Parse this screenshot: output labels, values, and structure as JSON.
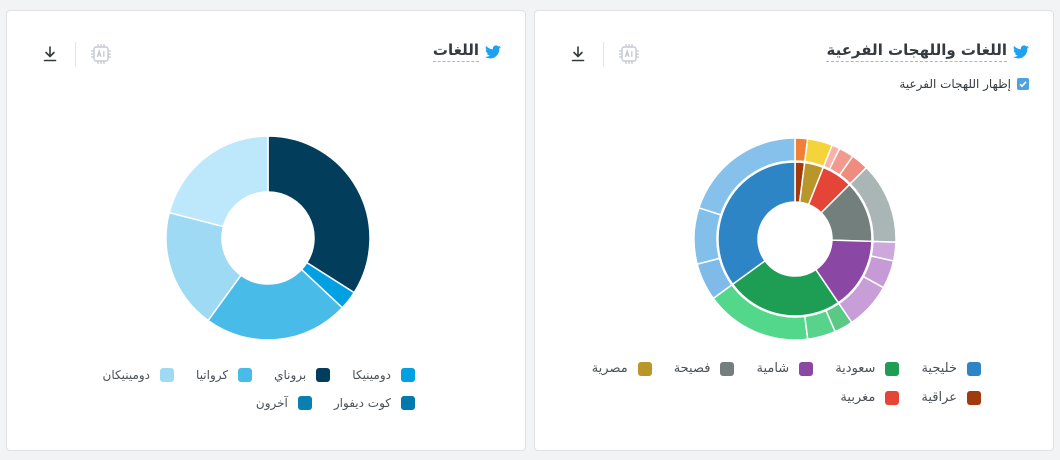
{
  "cards": {
    "dialects": {
      "title": "اللغات واللهجات الفرعية",
      "toggle_label": "إظهار اللهجات الفرعية",
      "toggle_checked": true
    },
    "languages": {
      "title": "اللغات"
    }
  },
  "icons": {
    "title": "twitter-bird-icon",
    "ai": "ai-chip-icon",
    "download": "download-icon",
    "check": "check-icon"
  },
  "chart_data": [
    {
      "type": "donut",
      "rings": {
        "inner": [
          {
            "name": "عراقية",
            "value": 2.0,
            "color": "#a33a0b"
          },
          {
            "name": "مصرية",
            "value": 4.0,
            "color": "#b8962a"
          },
          {
            "name": "مغربية",
            "value": 6.5,
            "color": "#e54537"
          },
          {
            "name": "فصيحة",
            "value": 13.0,
            "color": "#737f7d"
          },
          {
            "name": "شامية",
            "value": 15.0,
            "color": "#8a47a4"
          },
          {
            "name": "سعودية",
            "value": 24.5,
            "color": "#1e9d55"
          },
          {
            "name": "خليجية",
            "value": 35.0,
            "color": "#2d85c6"
          }
        ],
        "outer": [
          {
            "value": 2.0,
            "color": "#f08037"
          },
          {
            "value": 4.0,
            "color": "#f5d33a"
          },
          {
            "value": 1.3,
            "color": "#f7b2a9"
          },
          {
            "value": 2.4,
            "color": "#f39a8e"
          },
          {
            "value": 2.8,
            "color": "#ef8b7f"
          },
          {
            "value": 13.0,
            "color": "#aab6b5"
          },
          {
            "value": 3.0,
            "color": "#cda8dc"
          },
          {
            "value": 4.5,
            "color": "#c69ad6"
          },
          {
            "value": 7.5,
            "color": "#c79ed7"
          },
          {
            "value": 3.0,
            "color": "#5ac985"
          },
          {
            "value": 4.5,
            "color": "#57d38c"
          },
          {
            "value": 17.0,
            "color": "#53d88b"
          },
          {
            "value": 6.0,
            "color": "#7fbbe9"
          },
          {
            "value": 9.0,
            "color": "#82bfeb"
          },
          {
            "value": 20.0,
            "color": "#86c1ec"
          }
        ]
      },
      "legend": [
        [
          "خليجية",
          "سعودية",
          "شامية",
          "فصيحة",
          "مصرية"
        ],
        [
          "عراقية",
          "مغربية"
        ]
      ]
    },
    {
      "type": "donut",
      "series": [
        {
          "name": "بروناي",
          "value": 34.0,
          "color": "#023d5c"
        },
        {
          "name": "دومينيكا",
          "value": 3.0,
          "color": "#00a0e3"
        },
        {
          "name": "كرواتيا",
          "value": 23.0,
          "color": "#49bbe9"
        },
        {
          "name": "دومينيكان",
          "value": 19.0,
          "color": "#9fdaf5"
        },
        {
          "name": "كوت ديفوار",
          "value": 21.0,
          "color": "#bde8fb"
        }
      ],
      "legend": [
        [
          {
            "name": "دومينيكا",
            "color": "#00a0e3"
          },
          {
            "name": "بروناي",
            "color": "#023d5c"
          },
          {
            "name": "كرواتيا",
            "color": "#49bbe9"
          },
          {
            "name": "دومينيكان",
            "color": "#9fdaf5"
          }
        ],
        [
          {
            "name": "كوت ديفوار",
            "color": "#0079ad"
          },
          {
            "name": "آخرون",
            "color": "#0a7fb1"
          }
        ]
      ]
    }
  ]
}
